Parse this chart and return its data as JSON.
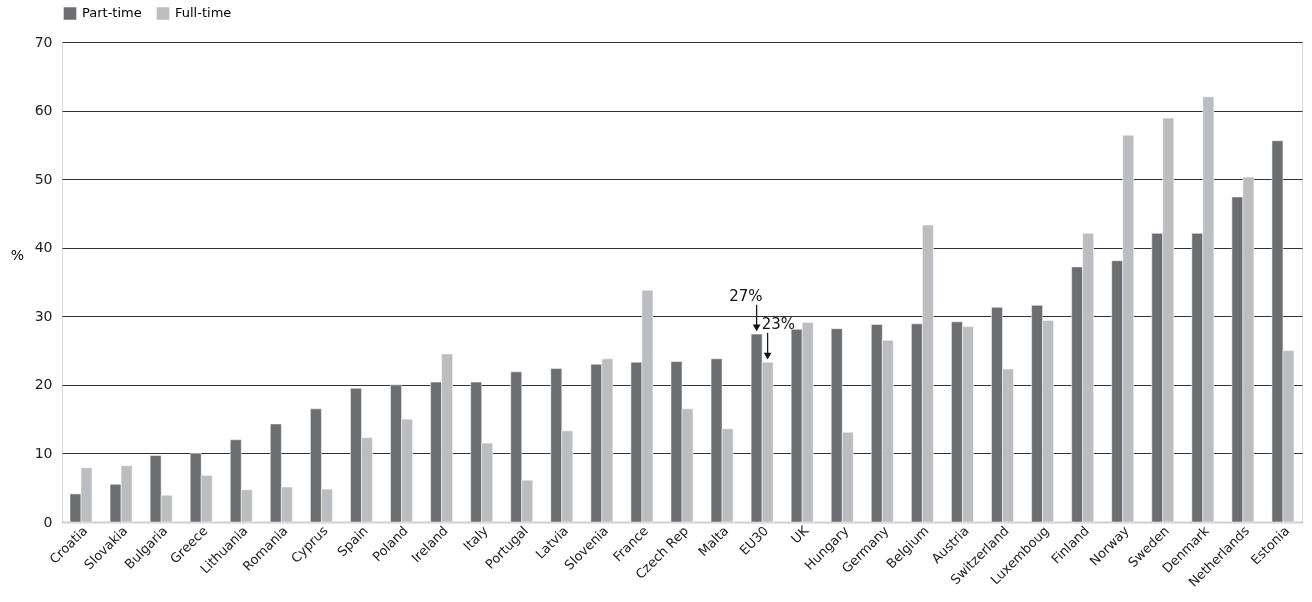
{
  "chart_data": {
    "type": "bar",
    "categories": [
      "Croatia",
      "Slovakia",
      "Bulgaria",
      "Greece",
      "Lithuania",
      "Romania",
      "Cyprus",
      "Spain",
      "Poland",
      "Ireland",
      "Italy",
      "Portugal",
      "Latvia",
      "Slovenia",
      "France",
      "Czech Rep",
      "Malta",
      "EU30",
      "UK",
      "Hungary",
      "Germany",
      "Belgium",
      "Austria",
      "Switzerland",
      "Luxemboug",
      "Finland",
      "Norway",
      "Sweden",
      "Denmark",
      "Netherlands",
      "Estonia"
    ],
    "series": [
      {
        "name": "Part-time",
        "color": "#6d6e71",
        "values": [
          4.1,
          5.5,
          9.7,
          10,
          12,
          14.3,
          16.5,
          19.5,
          20,
          20.4,
          20.4,
          21.9,
          22.4,
          23,
          23.3,
          23.4,
          23.8,
          27.4,
          28.1,
          28.2,
          28.8,
          28.9,
          29.2,
          31.3,
          31.6,
          37.2,
          38.1,
          42.1,
          42.1,
          47.4,
          55.6
        ]
      },
      {
        "name": "Full-time",
        "color": "#bcbdc0",
        "values": [
          7.9,
          8.2,
          3.9,
          6.8,
          4.7,
          5.1,
          4.8,
          12.3,
          15,
          24.5,
          11.5,
          6.1,
          13.3,
          23.8,
          33.8,
          16.5,
          13.6,
          23.3,
          29.1,
          13.1,
          26.5,
          43.3,
          28.5,
          22.3,
          29.4,
          42.1,
          56.4,
          58.9,
          62,
          50.3,
          25
        ]
      }
    ],
    "ylabel": "%",
    "ylim": [
      0,
      70
    ],
    "yticks": [
      0,
      10,
      20,
      30,
      40,
      50,
      60,
      70
    ],
    "grid": "y",
    "legend": "top",
    "annotations": [
      {
        "text": "27%",
        "x": "EU30",
        "y": 27.4
      },
      {
        "text": "23%",
        "x": "EU30",
        "y": 23.3
      }
    ]
  }
}
